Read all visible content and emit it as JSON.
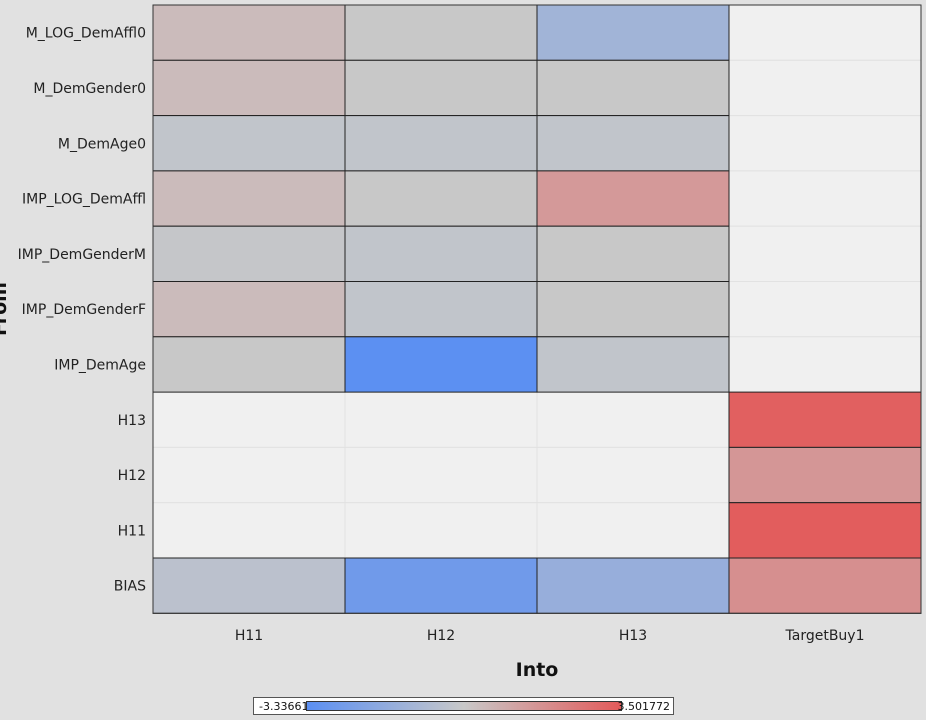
{
  "chart_data": {
    "type": "heatmap",
    "xlabel": "Into",
    "ylabel": "From",
    "x_categories": [
      "H11",
      "H12",
      "H13",
      "TargetBuy1"
    ],
    "y_categories": [
      "M_LOG_DemAffl0",
      "M_DemGender0",
      "M_DemAge0",
      "IMP_LOG_DemAffl",
      "IMP_DemGenderM",
      "IMP_DemGenderF",
      "IMP_DemAge",
      "H13",
      "H12",
      "H11",
      "BIAS"
    ],
    "values": [
      [
        0.4,
        0.0,
        -1.2,
        null
      ],
      [
        0.4,
        0.0,
        0.0,
        null
      ],
      [
        -0.2,
        -0.2,
        -0.2,
        null
      ],
      [
        0.4,
        0.0,
        1.5,
        null
      ],
      [
        -0.1,
        -0.2,
        0.0,
        null
      ],
      [
        0.4,
        -0.2,
        0.0,
        null
      ],
      [
        0.0,
        -3.3,
        -0.2,
        null
      ],
      [
        null,
        null,
        null,
        3.3
      ],
      [
        null,
        null,
        null,
        1.6
      ],
      [
        null,
        null,
        null,
        3.4
      ],
      [
        -0.4,
        -2.7,
        -1.5,
        1.8
      ]
    ],
    "color_range": [
      -3.33661,
      3.501772
    ],
    "color_low": "#5b8ff2",
    "color_mid": "#c8c8c8",
    "color_high": "#e35a5a",
    "missing_color": "#f0f0f0",
    "legend": {
      "min_label": "-3.33661",
      "max_label": "3.501772",
      "placement": "bottom"
    }
  }
}
